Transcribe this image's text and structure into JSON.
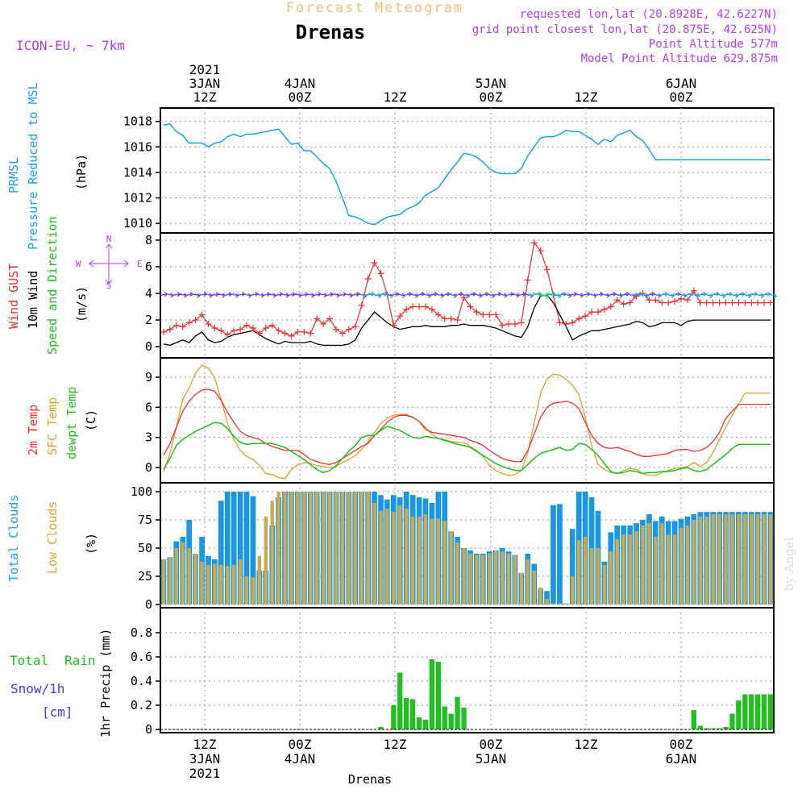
{
  "header": {
    "title": "Forecast Meteogram",
    "location": "Drenas",
    "model": "ICON-EU, ~ 7km",
    "requested": "requested lon,lat (20.8928E, 42.6227N)",
    "gridpoint": "grid point closest lon,lat (20.875E, 42.625N)",
    "point_alt": "Point Altitude 577m",
    "model_alt": "Model Point Altitude 629.875m",
    "footer": "Drenas",
    "credit": "by Angel"
  },
  "top_axis": [
    "2021",
    "3JAN",
    "12Z",
    "4JAN",
    "00Z",
    "12Z",
    "5JAN",
    "00Z",
    "12Z",
    "6JAN",
    "00Z"
  ],
  "bottom_axis": [
    "12Z",
    "3JAN",
    "2021",
    "00Z",
    "4JAN",
    "12Z",
    "00Z",
    "5JAN",
    "12Z",
    "00Z",
    "6JAN"
  ],
  "colors": {
    "pressure": "#1aa3e8",
    "gust": "#f03030",
    "wind": "#000000",
    "temp2m": "#f03030",
    "sfc": "#e0a030",
    "dew": "#20c020",
    "total_clouds": "#1a96e6",
    "low_clouds": "#c8aa55",
    "rain": "#20c020",
    "snow": "#4040e0",
    "header": "#b040e0",
    "title": "#f0c080"
  },
  "labels": {
    "p1": [
      "PRMSL",
      "Pressure Reduced to MSL",
      "(hPa)"
    ],
    "p2": [
      "Wind GUST",
      "10m Wind",
      "Speed and Direction",
      "(m/s)"
    ],
    "p2_compass": [
      "N",
      "W",
      "E",
      "S"
    ],
    "p3": [
      "2m Temp",
      "SFC Temp",
      "dewpt Temp",
      "(C)"
    ],
    "p4": [
      "Total Clouds",
      "Low Clouds",
      "(%)"
    ],
    "p5": [
      "Total",
      "Rain",
      "Snow/1h",
      "[cm]",
      "1hr Precip (mm)"
    ]
  },
  "chart_data": [
    {
      "type": "line",
      "title": "PRMSL Pressure Reduced to MSL",
      "ylabel": "(hPa)",
      "ylim": [
        1009.5,
        1018.8
      ],
      "yticks": [
        1010,
        1012,
        1014,
        1016,
        1018
      ],
      "hours": [
        0,
        1,
        2,
        3,
        4,
        5,
        6,
        7,
        8,
        9,
        10,
        11,
        12,
        13,
        14,
        15,
        16,
        17,
        18,
        19,
        20,
        21,
        22,
        23,
        24,
        25,
        26,
        27,
        28,
        29,
        30,
        31,
        32,
        33,
        34,
        35,
        36,
        37,
        38,
        39,
        40,
        41,
        42,
        43,
        44,
        45,
        46,
        47,
        48,
        49,
        50,
        51,
        52,
        53,
        54,
        55,
        56,
        57,
        58,
        59,
        60,
        61,
        62,
        63,
        64,
        65,
        66,
        67,
        68,
        69,
        70,
        71,
        72,
        73,
        74,
        75,
        76,
        77,
        78,
        79,
        80,
        81,
        82,
        83,
        84,
        85,
        86,
        87,
        88,
        89,
        90,
        91,
        92,
        93,
        94,
        95
      ],
      "series": [
        {
          "name": "PRMSL",
          "values": [
            1017.7,
            1017.8,
            1017.2,
            1016.9,
            1016.3,
            1016.3,
            1016.3,
            1016.0,
            1016.3,
            1016.4,
            1016.8,
            1017.0,
            1016.8,
            1017.0,
            1017.0,
            1017.1,
            1017.2,
            1017.3,
            1017.4,
            1016.8,
            1016.2,
            1016.3,
            1015.7,
            1015.7,
            1015.2,
            1014.7,
            1014.3,
            1013.3,
            1012.0,
            1010.6,
            1010.5,
            1010.3,
            1010.0,
            1009.9,
            1010.2,
            1010.5,
            1010.6,
            1010.7,
            1011.1,
            1011.3,
            1011.6,
            1012.2,
            1012.5,
            1012.8,
            1013.5,
            1014.2,
            1014.8,
            1015.5,
            1015.4,
            1015.2,
            1014.8,
            1014.3,
            1014.0,
            1013.9,
            1013.9,
            1013.9,
            1014.3,
            1015.3,
            1016.0,
            1016.7,
            1016.8,
            1016.8,
            1017.0,
            1017.3,
            1017.2,
            1017.2,
            1016.9,
            1016.6,
            1016.2,
            1016.6,
            1016.4,
            1016.9,
            1017.1,
            1017.3,
            1016.8,
            1016.5,
            1015.8,
            1015.0,
            1015.0,
            1015.0,
            1015.0,
            1015.0,
            1015.0,
            1015.0,
            1015.0,
            1015.0,
            1015.0,
            1015.0,
            1015.0,
            1015.0,
            1015.0,
            1015.0,
            1015.0,
            1015.0,
            1015.0,
            1015.0
          ]
        }
      ]
    },
    {
      "type": "line",
      "title": "Wind GUST / 10m Wind Speed and Direction",
      "ylabel": "(m/s)",
      "ylim": [
        -0.6,
        8.3
      ],
      "yticks": [
        0,
        2,
        4,
        6,
        8
      ],
      "series": [
        {
          "name": "Wind GUST",
          "values": [
            1.1,
            1.3,
            1.6,
            1.5,
            1.8,
            2.0,
            2.4,
            1.7,
            1.4,
            1.2,
            0.9,
            1.2,
            1.3,
            1.6,
            1.4,
            1.0,
            1.4,
            1.6,
            1.2,
            1.0,
            0.8,
            1.1,
            1.1,
            1.0,
            2.1,
            1.7,
            2.1,
            1.3,
            1.0,
            1.3,
            1.5,
            3.1,
            5.1,
            6.3,
            5.5,
            3.9,
            1.6,
            2.3,
            2.8,
            3.0,
            3.0,
            3.0,
            2.8,
            2.4,
            2.1,
            2.1,
            2.0,
            3.7,
            3.0,
            2.6,
            2.4,
            2.4,
            2.4,
            1.6,
            1.7,
            1.7,
            1.8,
            5.0,
            7.8,
            7.2,
            5.8,
            3.9,
            1.8,
            1.7,
            1.8,
            2.1,
            2.3,
            2.6,
            2.6,
            2.8,
            3.0,
            3.5,
            3.2,
            3.3,
            3.8,
            4.0,
            3.5,
            3.5,
            3.3,
            3.3,
            3.4,
            3.6,
            3.5,
            4.2,
            3.3,
            3.3,
            3.3,
            3.3,
            3.3,
            3.3,
            3.3,
            3.3,
            3.3,
            3.3,
            3.3,
            3.3
          ]
        },
        {
          "name": "10m Wind",
          "values": [
            0.2,
            0.1,
            0.3,
            0.5,
            0.3,
            0.8,
            1.1,
            0.5,
            0.3,
            0.4,
            0.7,
            0.9,
            1.0,
            1.1,
            1.2,
            0.9,
            0.6,
            0.4,
            0.2,
            0.4,
            0.3,
            0.3,
            0.3,
            0.4,
            0.2,
            0.1,
            0.1,
            0.1,
            0.1,
            0.2,
            0.5,
            1.4,
            2.0,
            2.6,
            2.2,
            1.8,
            1.5,
            1.3,
            1.4,
            1.5,
            1.5,
            1.6,
            1.5,
            1.5,
            1.5,
            1.6,
            1.6,
            1.7,
            1.6,
            1.6,
            1.6,
            1.5,
            1.4,
            1.2,
            1.0,
            0.8,
            0.7,
            1.5,
            2.9,
            3.8,
            3.9,
            3.3,
            2.4,
            1.5,
            0.5,
            0.8,
            1.0,
            1.2,
            1.2,
            1.3,
            1.4,
            1.5,
            1.6,
            1.7,
            1.9,
            1.8,
            1.5,
            1.6,
            1.8,
            1.8,
            1.8,
            1.6,
            1.9,
            2.0,
            2.0,
            2.0,
            2.0,
            2.0,
            2.0,
            2.0,
            2.0,
            2.0,
            2.0,
            2.0,
            2.0,
            2.0
          ]
        }
      ]
    },
    {
      "type": "line",
      "title": "2m Temp / SFC Temp / dewpt Temp",
      "ylabel": "(C)",
      "ylim": [
        -1.2,
        10.6
      ],
      "yticks": [
        0,
        3,
        6,
        9
      ],
      "series": [
        {
          "name": "2m Temp",
          "values": [
            1.2,
            2.4,
            4.0,
            5.6,
            6.6,
            7.3,
            7.7,
            7.8,
            7.6,
            6.7,
            5.5,
            4.5,
            3.6,
            3.2,
            3.0,
            2.8,
            2.4,
            2.1,
            1.9,
            1.7,
            1.7,
            1.7,
            1.3,
            0.8,
            0.6,
            0.4,
            0.3,
            0.5,
            0.9,
            1.3,
            1.7,
            2.1,
            2.4,
            3.2,
            3.8,
            4.5,
            5.0,
            5.2,
            5.2,
            5.0,
            4.6,
            3.8,
            3.5,
            3.4,
            3.3,
            3.2,
            3.1,
            3.0,
            2.7,
            2.5,
            2.2,
            1.7,
            1.3,
            0.9,
            0.7,
            0.6,
            0.6,
            1.7,
            3.3,
            5.0,
            6.0,
            6.4,
            6.5,
            6.6,
            6.4,
            5.9,
            4.5,
            3.2,
            2.4,
            2.0,
            1.9,
            2.0,
            1.8,
            1.6,
            1.3,
            1.1,
            1.1,
            1.2,
            1.3,
            1.4,
            1.7,
            1.8,
            1.8,
            1.6,
            1.7,
            2.0,
            2.6,
            3.5,
            4.9,
            5.6,
            6.3,
            6.3,
            6.3,
            6.3,
            6.3,
            6.3
          ]
        },
        {
          "name": "SFC Temp",
          "values": [
            -0.4,
            1.4,
            4.0,
            6.8,
            7.9,
            9.4,
            10.2,
            9.9,
            8.9,
            6.8,
            4.4,
            2.8,
            1.7,
            1.1,
            0.8,
            0.2,
            -0.6,
            -0.7,
            -1.0,
            -1.1,
            -0.2,
            0.3,
            0.5,
            0.4,
            0.2,
            0.1,
            0.0,
            0.1,
            0.5,
            0.8,
            1.2,
            1.8,
            2.6,
            3.5,
            4.4,
            4.9,
            5.2,
            5.3,
            5.3,
            5.0,
            4.6,
            4.0,
            3.3,
            2.9,
            2.8,
            2.6,
            2.5,
            2.5,
            2.1,
            1.7,
            1.1,
            0.2,
            -0.3,
            -0.6,
            -0.8,
            -0.7,
            -0.3,
            1.5,
            4.4,
            7.4,
            8.8,
            9.3,
            9.2,
            8.8,
            8.2,
            7.3,
            5.0,
            2.2,
            0.3,
            -0.2,
            -0.5,
            -0.6,
            -0.3,
            -0.1,
            -0.2,
            -0.6,
            -0.8,
            -0.8,
            -0.5,
            -0.3,
            -0.1,
            0.0,
            0.1,
            0.5,
            0.1,
            0.5,
            1.5,
            2.8,
            4.0,
            5.2,
            6.3,
            7.4,
            7.4,
            7.4,
            7.4,
            7.4
          ]
        },
        {
          "name": "dewpt Temp",
          "values": [
            -0.2,
            0.9,
            2.2,
            2.8,
            3.2,
            3.6,
            3.9,
            4.2,
            4.5,
            4.4,
            3.9,
            3.1,
            2.5,
            2.3,
            2.4,
            2.4,
            2.4,
            2.4,
            2.2,
            2.0,
            1.6,
            1.2,
            0.8,
            0.3,
            -0.2,
            -0.5,
            -0.3,
            0.2,
            0.9,
            1.6,
            2.2,
            3.0,
            3.2,
            3.2,
            3.7,
            4.1,
            3.9,
            3.7,
            3.3,
            3.0,
            2.9,
            3.1,
            3.0,
            2.9,
            2.7,
            2.5,
            2.3,
            2.2,
            2.0,
            1.6,
            1.2,
            0.8,
            0.4,
            0.1,
            -0.1,
            -0.3,
            -0.3,
            0.3,
            0.9,
            1.4,
            1.6,
            1.8,
            2.0,
            1.7,
            1.8,
            2.4,
            2.3,
            1.8,
            1.2,
            0.4,
            -0.4,
            -0.6,
            -0.5,
            -0.3,
            -0.4,
            -0.6,
            -0.5,
            -0.5,
            -0.4,
            -0.4,
            -0.3,
            -0.1,
            0.0,
            -0.3,
            -0.4,
            -0.2,
            0.3,
            0.8,
            1.3,
            1.9,
            2.3,
            2.3,
            2.3,
            2.3,
            2.3,
            2.3
          ]
        }
      ]
    },
    {
      "type": "bar",
      "title": "Total Clouds / Low Clouds",
      "ylabel": "(%)",
      "ylim": [
        0,
        105
      ],
      "yticks": [
        0,
        25,
        50,
        75,
        100
      ],
      "series": [
        {
          "name": "Total Clouds",
          "values": [
            40,
            42,
            56,
            60,
            75,
            45,
            60,
            43,
            40,
            92,
            100,
            100,
            100,
            100,
            96,
            30,
            30,
            70,
            95,
            100,
            100,
            100,
            100,
            100,
            100,
            100,
            100,
            100,
            100,
            100,
            100,
            100,
            100,
            100,
            97,
            93,
            97,
            95,
            100,
            97,
            95,
            94,
            90,
            100,
            100,
            65,
            60,
            50,
            48,
            45,
            45,
            47,
            48,
            50,
            47,
            44,
            28,
            45,
            36,
            14,
            12,
            88,
            89,
            1,
            67,
            100,
            100,
            95,
            83,
            38,
            64,
            70,
            70,
            70,
            72,
            75,
            80,
            74,
            78,
            74,
            74,
            76,
            78,
            80,
            82,
            82,
            82,
            82,
            82,
            82,
            82,
            82,
            82,
            82,
            82,
            82
          ]
        },
        {
          "name": "Low Clouds",
          "values": [
            40,
            42,
            50,
            55,
            50,
            45,
            38,
            35,
            36,
            35,
            34,
            35,
            40,
            25,
            24,
            43,
            78,
            92,
            100,
            100,
            100,
            100,
            100,
            100,
            100,
            100,
            100,
            100,
            100,
            100,
            100,
            100,
            100,
            90,
            83,
            85,
            82,
            88,
            85,
            78,
            78,
            80,
            76,
            76,
            74,
            65,
            55,
            50,
            45,
            44,
            44,
            45,
            48,
            47,
            45,
            44,
            28,
            40,
            30,
            15,
            5,
            1,
            1,
            1,
            25,
            57,
            60,
            50,
            50,
            35,
            47,
            58,
            62,
            62,
            65,
            70,
            72,
            60,
            72,
            62,
            62,
            68,
            70,
            75,
            78,
            78,
            80,
            80,
            80,
            80,
            80,
            80,
            80,
            80,
            80,
            80
          ]
        }
      ]
    },
    {
      "type": "bar",
      "title": "1hr Precip",
      "ylabel": "1hr Precip (mm)",
      "ylim": [
        0,
        0.98
      ],
      "yticks": [
        0,
        0.2,
        0.4,
        0.6,
        0.8
      ],
      "series": [
        {
          "name": "Total Rain",
          "values": [
            0,
            0,
            0,
            0,
            0,
            0,
            0,
            0,
            0,
            0,
            0,
            0,
            0,
            0,
            0,
            0,
            0,
            0,
            0,
            0,
            0,
            0,
            0,
            0,
            0,
            0,
            0,
            0,
            0,
            0,
            0,
            0,
            0,
            0,
            0.02,
            0,
            0.2,
            0.47,
            0.26,
            0.25,
            0.1,
            0.08,
            0.58,
            0.56,
            0.19,
            0.13,
            0.27,
            0.18,
            0,
            0,
            0,
            0,
            0,
            0,
            0,
            0,
            0,
            0,
            0,
            0,
            0,
            0,
            0,
            0,
            0,
            0,
            0,
            0,
            0,
            0,
            0,
            0,
            0,
            0,
            0,
            0,
            0,
            0,
            0,
            0,
            0,
            0,
            0,
            0.16,
            0.03,
            0.01,
            0.01,
            0.01,
            0.02,
            0.13,
            0.24,
            0.29,
            0.29,
            0.29,
            0.29,
            0.29
          ]
        }
      ]
    }
  ]
}
